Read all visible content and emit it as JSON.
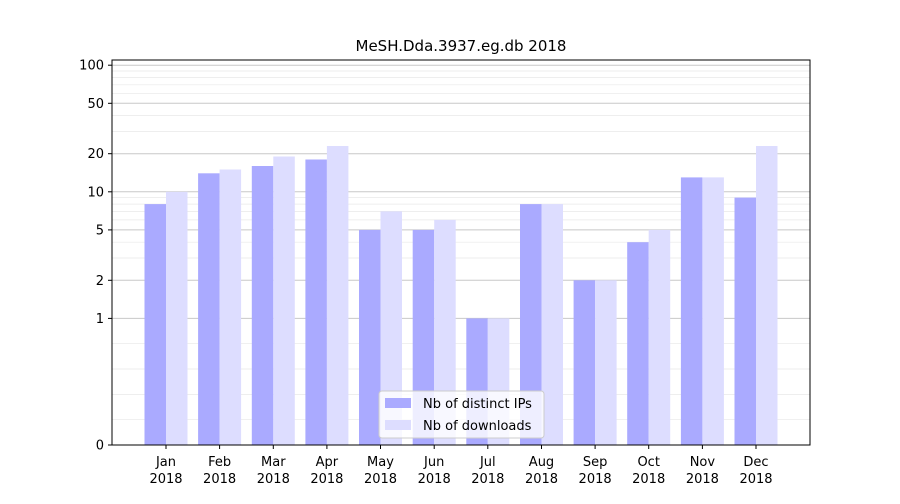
{
  "chart_data": {
    "type": "bar",
    "title": "MeSH.Dda.3937.eg.db 2018",
    "xlabel": "",
    "ylabel": "",
    "y_scale": "symlog",
    "y_ticks": [
      0,
      1,
      2,
      5,
      10,
      20,
      50,
      100
    ],
    "ylim": [
      0,
      110
    ],
    "grid": true,
    "legend_position": "lower center",
    "categories": [
      [
        "Jan",
        "2018"
      ],
      [
        "Feb",
        "2018"
      ],
      [
        "Mar",
        "2018"
      ],
      [
        "Apr",
        "2018"
      ],
      [
        "May",
        "2018"
      ],
      [
        "Jun",
        "2018"
      ],
      [
        "Jul",
        "2018"
      ],
      [
        "Aug",
        "2018"
      ],
      [
        "Sep",
        "2018"
      ],
      [
        "Oct",
        "2018"
      ],
      [
        "Nov",
        "2018"
      ],
      [
        "Dec",
        "2018"
      ]
    ],
    "series": [
      {
        "name": "Nb of distinct IPs",
        "color": "#aaaaff",
        "values": [
          8,
          14,
          16,
          18,
          5,
          5,
          1,
          8,
          2,
          4,
          13,
          9
        ]
      },
      {
        "name": "Nb of downloads",
        "color": "#ddddff",
        "values": [
          10,
          15,
          19,
          23,
          7,
          6,
          1,
          8,
          2,
          5,
          13,
          23
        ]
      }
    ]
  }
}
